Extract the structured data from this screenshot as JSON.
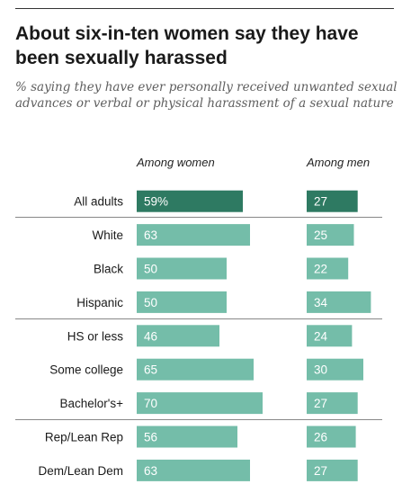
{
  "header": {
    "title": "About six-in-ten women say they have been sexually harassed",
    "subtitle": "% saying they have ever personally received unwanted sexual advances or verbal or physical harassment of a sexual nature"
  },
  "columns": {
    "women": "Among women",
    "men": "Among men"
  },
  "colors": {
    "highlight": "#2e7a62",
    "normal": "#74bda9",
    "divider": "#888888"
  },
  "chart_data": {
    "type": "bar",
    "categories": [
      "All adults",
      "White",
      "Black",
      "Hispanic",
      "HS or less",
      "Some college",
      "Bachelor's+",
      "Rep/Lean Rep",
      "Dem/Lean Dem"
    ],
    "series": [
      {
        "name": "Among women",
        "values": [
          59,
          63,
          50,
          50,
          46,
          65,
          70,
          56,
          63
        ],
        "labels": [
          "59%",
          "63",
          "50",
          "50",
          "46",
          "65",
          "70",
          "56",
          "63"
        ]
      },
      {
        "name": "Among men",
        "values": [
          27,
          25,
          22,
          34,
          24,
          30,
          27,
          26,
          27
        ],
        "labels": [
          "27",
          "25",
          "22",
          "34",
          "24",
          "30",
          "27",
          "26",
          "27"
        ]
      }
    ],
    "groups": [
      [
        0
      ],
      [
        1,
        2,
        3
      ],
      [
        4,
        5,
        6
      ],
      [
        7,
        8
      ]
    ],
    "highlight_index": 0
  }
}
